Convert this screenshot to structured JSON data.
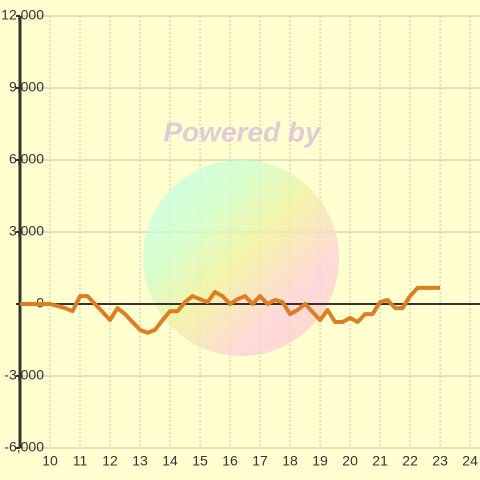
{
  "chart_data": {
    "type": "line",
    "watermark": "Powered by",
    "x": [
      9,
      9.25,
      9.5,
      9.75,
      10,
      10.25,
      10.5,
      10.75,
      11,
      11.25,
      11.5,
      11.75,
      12,
      12.25,
      12.5,
      12.75,
      13,
      13.25,
      13.5,
      13.75,
      14,
      14.25,
      14.5,
      14.75,
      15,
      15.25,
      15.5,
      15.75,
      16,
      16.25,
      16.5,
      16.75,
      17,
      17.25,
      17.5,
      17.75,
      18,
      18.25,
      18.5,
      18.75,
      19,
      19.25,
      19.5,
      19.75,
      20,
      20.25,
      20.5,
      20.75,
      21,
      21.25,
      21.5,
      21.75,
      22,
      22.25,
      22.5,
      22.75,
      23
    ],
    "series": [
      {
        "color": "#e07c22",
        "values": [
          0,
          0,
          0,
          0,
          0,
          -80,
          -170,
          -300,
          330,
          330,
          0,
          -330,
          -670,
          -170,
          -420,
          -750,
          -1080,
          -1200,
          -1080,
          -670,
          -300,
          -300,
          80,
          330,
          200,
          80,
          500,
          330,
          0,
          200,
          330,
          0,
          330,
          0,
          170,
          80,
          -420,
          -250,
          0,
          -330,
          -670,
          -250,
          -750,
          -750,
          -580,
          -750,
          -420,
          -420,
          80,
          170,
          -170,
          -170,
          330,
          670,
          670,
          670,
          670
        ]
      }
    ],
    "xlim": [
      9,
      24.33
    ],
    "xticks": [
      10,
      11,
      12,
      13,
      14,
      15,
      16,
      17,
      18,
      19,
      20,
      21,
      22,
      23,
      24
    ],
    "ylim": [
      -6000,
      12000
    ],
    "yticks": [
      {
        "value": -6000,
        "label": "-6,000"
      },
      {
        "value": -3000,
        "label": "-3,000"
      },
      0,
      {
        "value": 3000,
        "label": "3,000"
      },
      {
        "value": 6000,
        "label": "6,000"
      },
      {
        "value": 9000,
        "label": "9,000"
      },
      {
        "value": 12000,
        "label": "12,000"
      }
    ],
    "grid": true
  }
}
